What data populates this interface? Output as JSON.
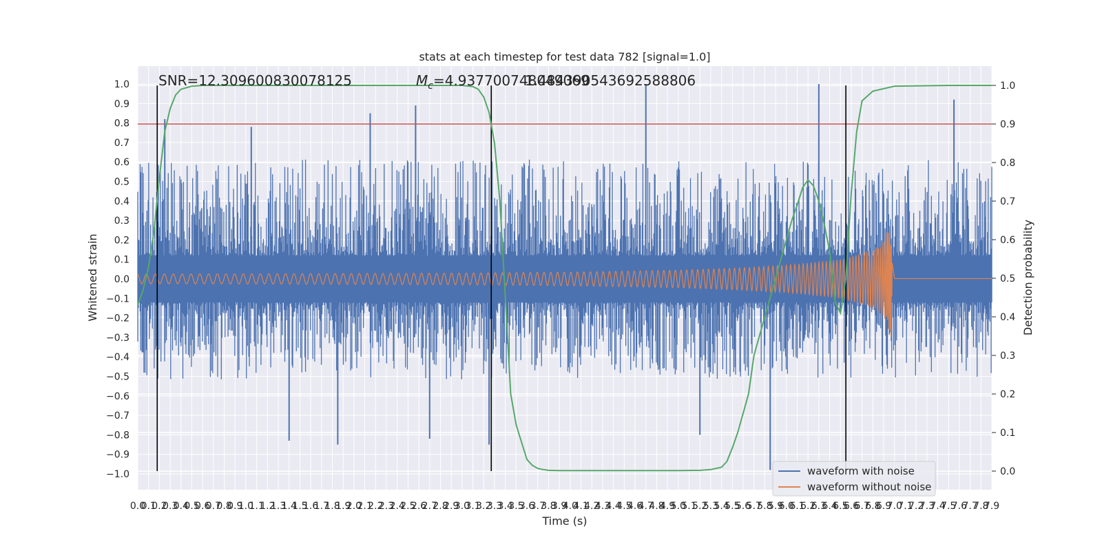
{
  "chart_data": {
    "type": "line",
    "title": "stats at each timestep for test data 782 [signal=1.0]",
    "xlabel": "Time (s)",
    "ylabel": "Whitened strain",
    "y2label": "Detection probability",
    "xlim": [
      0.0,
      7.9
    ],
    "ylim": [
      -1.1,
      1.1
    ],
    "y2lim": [
      -0.05,
      1.05
    ],
    "x_ticks": [
      0.0,
      0.1,
      0.2,
      0.3,
      0.4,
      0.5,
      0.6,
      0.7,
      0.8,
      0.9,
      1.0,
      1.1,
      1.2,
      1.3,
      1.4,
      1.5,
      1.6,
      1.7,
      1.8,
      1.9,
      2.0,
      2.1,
      2.2,
      2.3,
      2.4,
      2.5,
      2.6,
      2.7,
      2.8,
      2.9,
      3.0,
      3.1,
      3.2,
      3.3,
      3.4,
      3.5,
      3.6,
      3.7,
      3.8,
      3.9,
      4.0,
      4.1,
      4.2,
      4.3,
      4.4,
      4.5,
      4.6,
      4.7,
      4.8,
      4.9,
      5.0,
      5.1,
      5.2,
      5.3,
      5.4,
      5.5,
      5.6,
      5.7,
      5.8,
      5.9,
      6.0,
      6.1,
      6.2,
      6.3,
      6.4,
      6.5,
      6.6,
      6.7,
      6.8,
      6.9,
      7.0,
      7.1,
      7.2,
      7.3,
      7.4,
      7.5,
      7.6,
      7.7,
      7.8,
      7.9
    ],
    "y_ticks": [
      -1.0,
      -0.9,
      -0.8,
      -0.7,
      -0.6,
      -0.5,
      -0.4,
      -0.3,
      -0.2,
      -0.1,
      0.0,
      0.1,
      0.2,
      0.3,
      0.4,
      0.5,
      0.6,
      0.7,
      0.8,
      0.9,
      1.0
    ],
    "y2_ticks": [
      0.0,
      0.1,
      0.2,
      0.3,
      0.4,
      0.5,
      0.6,
      0.7,
      0.8,
      0.9,
      1.0
    ],
    "grid": true,
    "legend_position": "lower-right",
    "annotations": {
      "snr": "SNR=12.309600830078125",
      "mc_symbol": "M",
      "mc_subscript": "c",
      "mc_rest": "=4.937700748049069",
      "mc_overlap": "1.484390543692588806"
    },
    "threshold": {
      "y2": 0.9,
      "color": "#c44e52"
    },
    "vertical_markers_x": [
      0.18,
      3.27,
      6.55
    ],
    "series": [
      {
        "name": "waveform with noise",
        "color": "#4c72b0",
        "noise_band": [
          -0.45,
          0.55
        ],
        "outlier_peaks": [
          0.82,
          0.78,
          0.85,
          0.89,
          1.0,
          1.0,
          0.92
        ],
        "outlier_troughs": [
          -0.83,
          -0.85,
          -0.82,
          -0.85,
          -0.8,
          -0.98
        ]
      },
      {
        "name": "waveform without noise",
        "color": "#dd8452",
        "envelope_x": [
          0.0,
          1.0,
          2.0,
          3.0,
          4.0,
          5.0,
          5.5,
          6.0,
          6.5,
          6.8,
          6.9,
          6.97,
          7.0,
          7.9
        ],
        "envelope_y": [
          0.025,
          0.026,
          0.028,
          0.03,
          0.035,
          0.045,
          0.055,
          0.07,
          0.1,
          0.15,
          0.19,
          0.3,
          0.005,
          0.005
        ]
      },
      {
        "name": "Detection probability",
        "color": "#55a868",
        "axis": "right",
        "x": [
          0.0,
          0.05,
          0.1,
          0.15,
          0.2,
          0.25,
          0.3,
          0.35,
          0.4,
          0.5,
          0.6,
          0.8,
          1.0,
          1.5,
          2.0,
          2.5,
          3.0,
          3.1,
          3.15,
          3.2,
          3.25,
          3.3,
          3.35,
          3.4,
          3.45,
          3.5,
          3.55,
          3.6,
          3.65,
          3.7,
          3.75,
          3.8,
          3.9,
          4.0,
          4.5,
          5.0,
          5.2,
          5.3,
          5.4,
          5.45,
          5.5,
          5.55,
          5.6,
          5.65,
          5.7,
          5.8,
          5.9,
          6.0,
          6.05,
          6.1,
          6.15,
          6.2,
          6.25,
          6.3,
          6.35,
          6.4,
          6.45,
          6.5,
          6.55,
          6.6,
          6.65,
          6.7,
          6.8,
          7.0,
          7.5,
          7.9
        ],
        "y": [
          0.43,
          0.47,
          0.53,
          0.62,
          0.76,
          0.88,
          0.94,
          0.975,
          0.99,
          0.998,
          1.0,
          1.0,
          1.0,
          1.0,
          1.0,
          1.0,
          1.0,
          0.997,
          0.99,
          0.97,
          0.93,
          0.85,
          0.7,
          0.45,
          0.2,
          0.12,
          0.075,
          0.03,
          0.015,
          0.007,
          0.004,
          0.002,
          0.0015,
          0.0015,
          0.0015,
          0.0015,
          0.002,
          0.004,
          0.01,
          0.025,
          0.06,
          0.1,
          0.15,
          0.2,
          0.3,
          0.4,
          0.5,
          0.6,
          0.65,
          0.69,
          0.735,
          0.755,
          0.74,
          0.7,
          0.64,
          0.57,
          0.44,
          0.41,
          0.5,
          0.72,
          0.88,
          0.96,
          0.985,
          0.998,
          1.0,
          1.0
        ]
      }
    ]
  }
}
